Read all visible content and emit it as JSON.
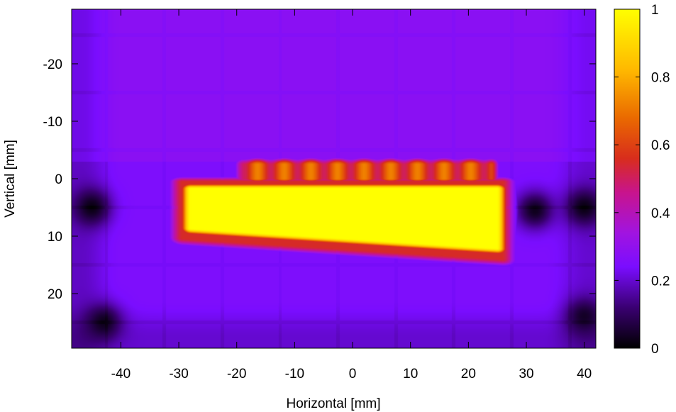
{
  "chart_data": {
    "type": "heatmap",
    "xlabel": "Horizontal [mm]",
    "ylabel": "Vertical [mm]",
    "xlim": [
      -48.5,
      42.0
    ],
    "ylim": [
      -29.5,
      29.5
    ],
    "y_axis_inverted": true,
    "x_ticks": [
      -40,
      -30,
      -20,
      -10,
      0,
      10,
      20,
      30,
      40
    ],
    "x_tick_labels": [
      "-40",
      "-30",
      "-20",
      "-10",
      "0",
      "10",
      "20",
      "30",
      "40"
    ],
    "y_ticks": [
      -20,
      -10,
      0,
      10,
      20
    ],
    "y_tick_labels": [
      "-20",
      "-10",
      "0",
      "10",
      "20"
    ],
    "colorbar": {
      "range": [
        0,
        1
      ],
      "ticks": [
        0,
        0.2,
        0.4,
        0.6,
        0.8,
        1
      ],
      "tick_labels": [
        "0",
        "0.2",
        "0.4",
        "0.6",
        "0.8",
        "1"
      ],
      "colormap": "black-purple-red-orange-yellow"
    },
    "regions": {
      "background_level": 0.25,
      "upper_level": 0.28,
      "high_plateau": {
        "level": 1.0,
        "x": [
          -30,
          27
        ],
        "y": [
          0.5,
          13
        ]
      },
      "upper_lobes": {
        "level": 0.75,
        "x": [
          -20,
          25
        ],
        "y": [
          -4,
          1
        ]
      },
      "dark_spots": [
        {
          "x": -45,
          "y": 5,
          "level": 0.02
        },
        {
          "x": 31.5,
          "y": 5.5,
          "level": 0.03
        },
        {
          "x": 40,
          "y": 5,
          "level": 0.02
        },
        {
          "x": -43,
          "y": 25,
          "level": 0.03
        },
        {
          "x": 40,
          "y": 24,
          "level": 0.04
        }
      ]
    }
  }
}
